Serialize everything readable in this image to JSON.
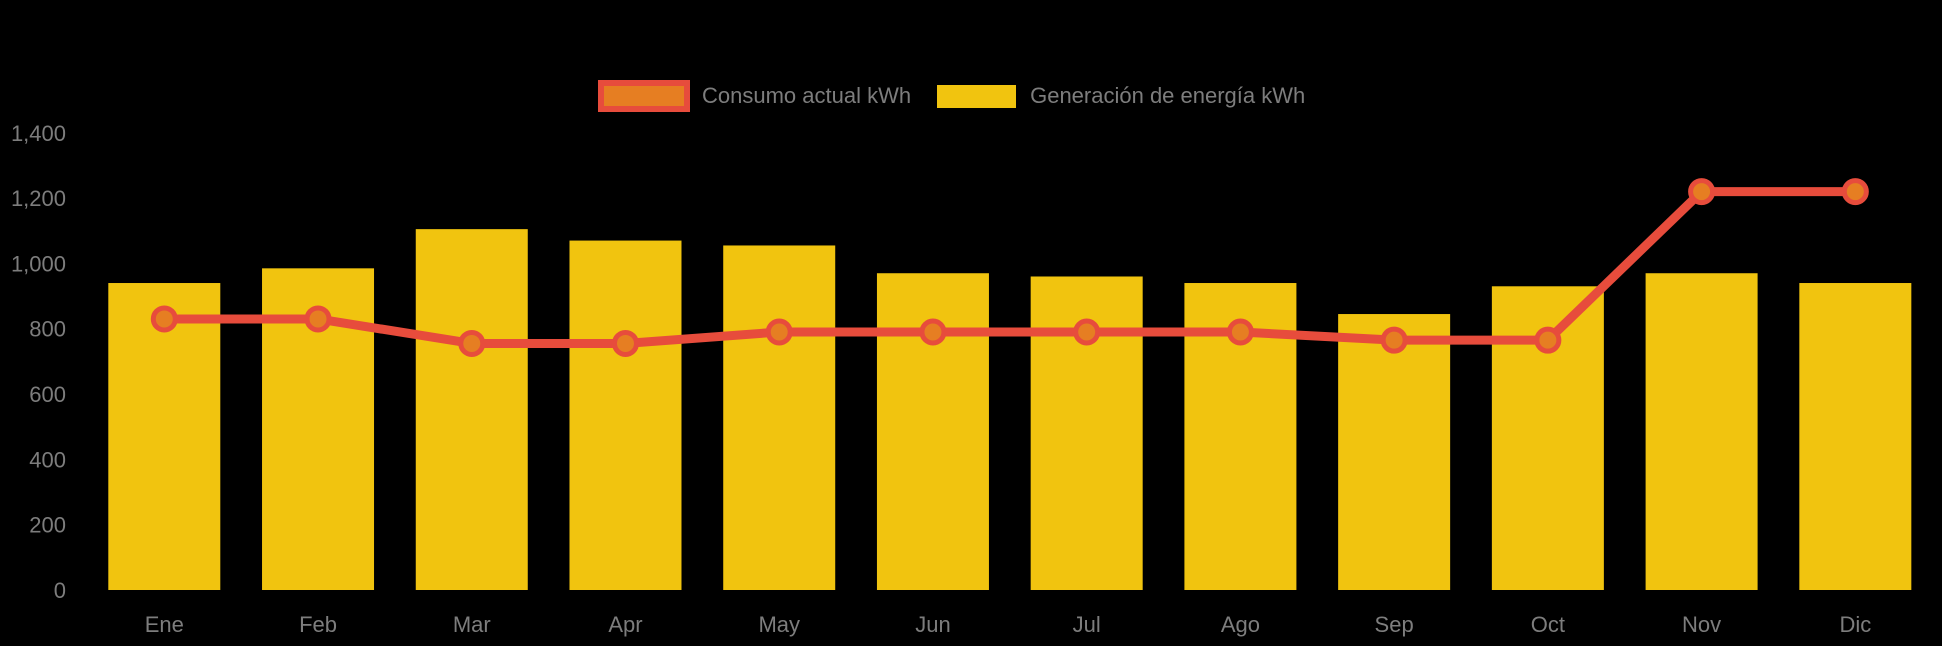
{
  "chart": {
    "background_color": "#000000",
    "axis_text_color": "#7D7D7D",
    "legend": {
      "position": "top",
      "items": [
        {
          "label": "Consumo actual kWh",
          "swatch_fill": "#E67E22",
          "swatch_border": "#E74C3C",
          "kind": "line-series"
        },
        {
          "label": "Generación de energía kWh",
          "swatch_fill": "#F1C40F",
          "kind": "bar-series"
        }
      ]
    }
  },
  "chart_data": {
    "type": "bar+line",
    "title": "",
    "xlabel": "",
    "ylabel": "",
    "categories": [
      "Ene",
      "Feb",
      "Mar",
      "Apr",
      "May",
      "Jun",
      "Jul",
      "Ago",
      "Sep",
      "Oct",
      "Nov",
      "Dic"
    ],
    "series": [
      {
        "name": "Consumo actual kWh",
        "type": "line",
        "line_color": "#E74C3C",
        "marker_fill": "#E67E22",
        "marker_stroke": "#E74C3C",
        "values": [
          830,
          830,
          755,
          755,
          790,
          790,
          790,
          790,
          765,
          765,
          1220,
          1220
        ]
      },
      {
        "name": "Generación de energía kWh",
        "type": "bar",
        "color": "#F1C40F",
        "values": [
          940,
          985,
          1105,
          1070,
          1055,
          970,
          960,
          940,
          845,
          930,
          970,
          940
        ]
      }
    ],
    "ylim": [
      0,
      1400
    ],
    "yticks": [
      0,
      200,
      400,
      600,
      800,
      1000,
      1200,
      1400
    ],
    "ytick_labels": [
      "0",
      "200",
      "400",
      "600",
      "800",
      "1,000",
      "1,200",
      "1,400"
    ],
    "grid": false,
    "legend_position": "top"
  }
}
